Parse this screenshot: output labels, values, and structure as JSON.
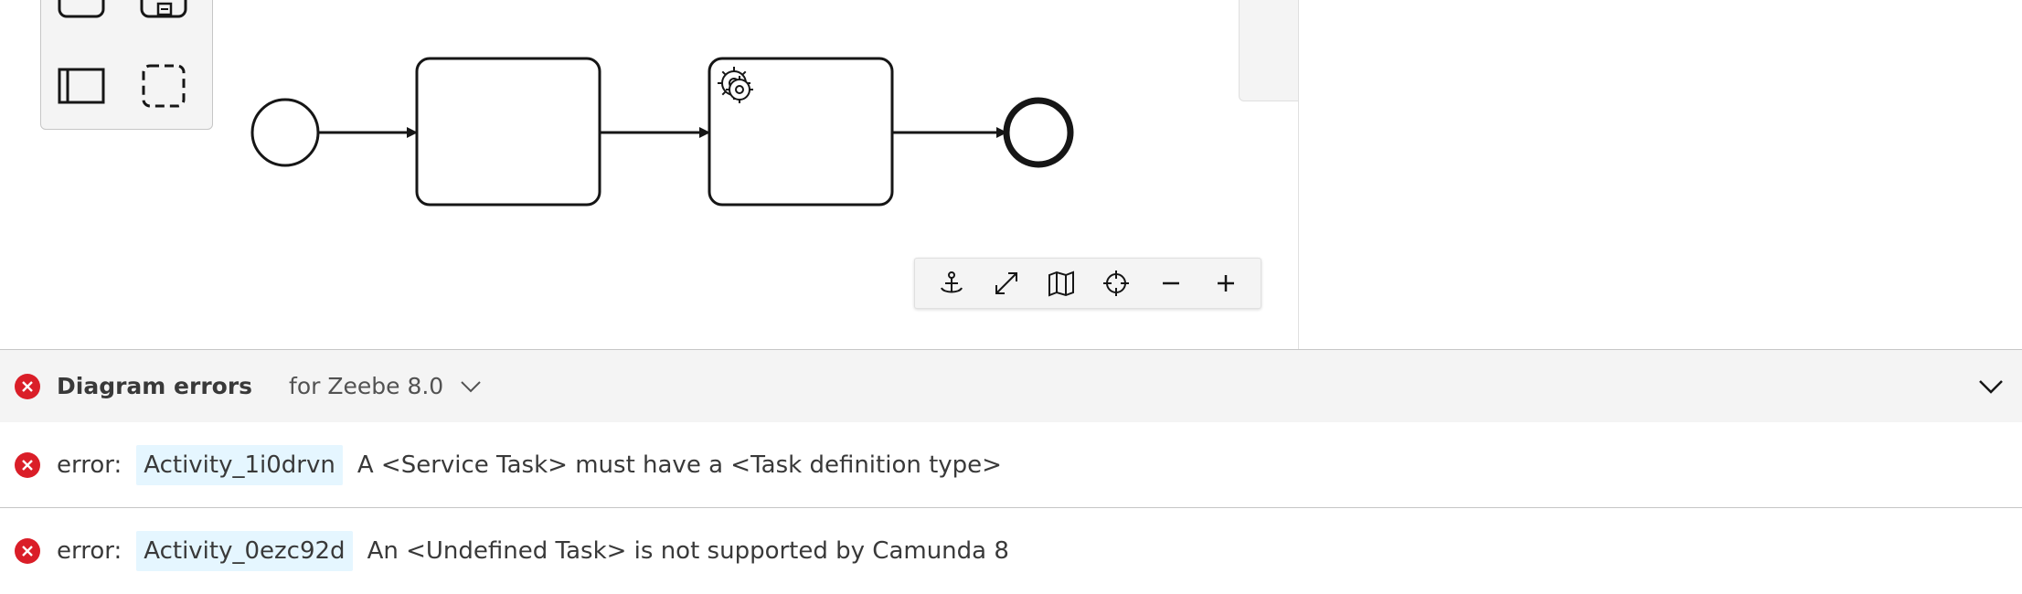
{
  "palette": {
    "tools": [
      "task-tool",
      "subprocess-tool",
      "pool-tool",
      "group-tool"
    ]
  },
  "diagram": {
    "elements": [
      "start-event",
      "task",
      "service-task",
      "end-event"
    ]
  },
  "zoom_controls": {
    "buttons": [
      "anchor-icon",
      "fullscreen-icon",
      "minimap-icon",
      "reset-view-icon",
      "zoom-out-icon",
      "zoom-in-icon"
    ]
  },
  "errors_panel": {
    "title": "Diagram errors",
    "target": "for Zeebe 8.0",
    "rows": [
      {
        "label": "error:",
        "id": "Activity_1i0drvn",
        "message": "A <Service Task> must have a <Task definition type>"
      },
      {
        "label": "error:",
        "id": "Activity_0ezc92d",
        "message": "An <Undefined Task> is not supported by Camunda 8"
      }
    ]
  },
  "colors": {
    "error_red": "#da1e28",
    "id_highlight": "#e5f6ff",
    "panel_grey": "#f4f4f4"
  }
}
